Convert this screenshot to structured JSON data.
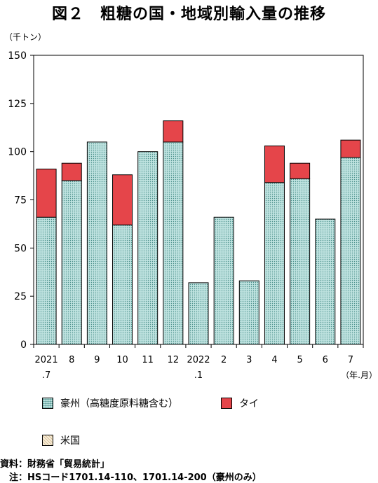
{
  "title": "図２　粗糖の国・地域別輸入量の推移",
  "unit": "（千トン）",
  "xunit": "（年.月）",
  "legend": {
    "aus": "豪州（高糖度原料糖含む）",
    "tha": "タイ",
    "usa": "米国"
  },
  "notes": {
    "source": "資料：財務省「貿易統計」",
    "note": "　注：HSコード1701.14-110、1701.14-200（豪州のみ）"
  },
  "colors": {
    "aus_fill": "#bfe3e0",
    "tha_fill": "#e5454a",
    "usa_fill": "#f8eedb"
  },
  "chart_data": {
    "type": "bar",
    "stacked": true,
    "categories": [
      [
        "2021",
        ".7"
      ],
      [
        "8"
      ],
      [
        "9"
      ],
      [
        "10"
      ],
      [
        "11"
      ],
      [
        "12"
      ],
      [
        "2022",
        ".1"
      ],
      [
        "2"
      ],
      [
        "3"
      ],
      [
        "4"
      ],
      [
        "5"
      ],
      [
        "6"
      ],
      [
        "7"
      ]
    ],
    "series": [
      {
        "name": "豪州（高糖度原料糖含む）",
        "values": [
          66,
          85,
          105,
          62,
          100,
          105,
          32,
          66,
          33,
          84,
          86,
          65,
          97
        ]
      },
      {
        "name": "タイ",
        "values": [
          25,
          9,
          0,
          26,
          0,
          11,
          0,
          0,
          0,
          19,
          8,
          0,
          9
        ]
      },
      {
        "name": "米国",
        "values": [
          0,
          0,
          0,
          0,
          0,
          0,
          0,
          0,
          0,
          0,
          0,
          0,
          0
        ]
      }
    ],
    "ylim": [
      0,
      150
    ],
    "yticks": [
      0,
      25,
      50,
      75,
      100,
      125,
      150
    ],
    "grid": false,
    "legend_position": "bottom"
  }
}
